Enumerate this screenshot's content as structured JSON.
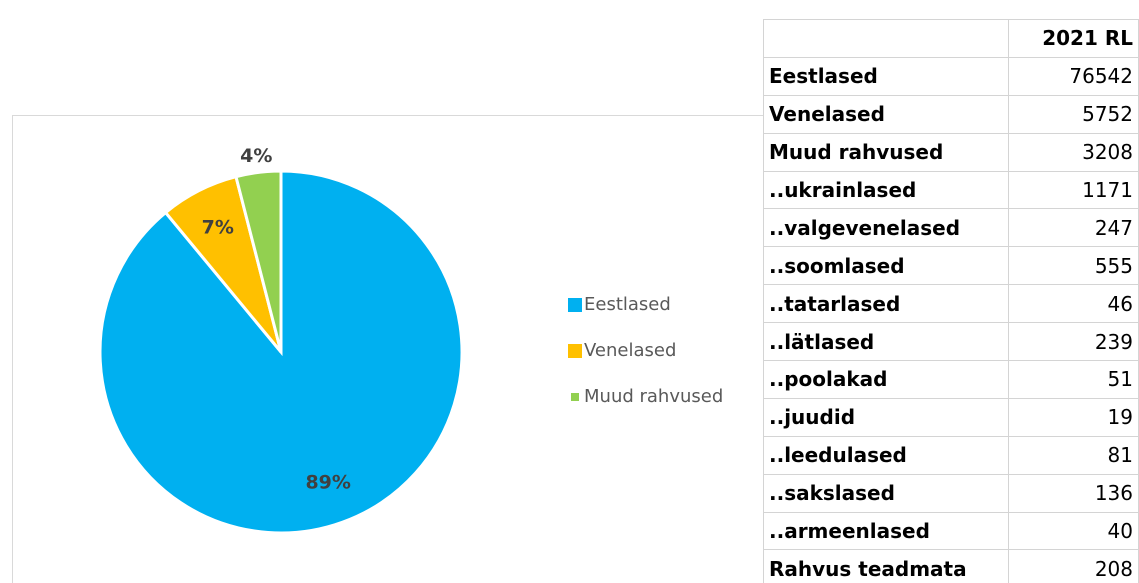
{
  "chart_data": {
    "type": "pie",
    "categories": [
      "Eestlased",
      "Venelased",
      "Muud rahvused"
    ],
    "values": [
      89,
      7,
      4
    ],
    "value_labels": [
      "89%",
      "7%",
      "4%"
    ],
    "colors": [
      "#00b0f0",
      "#ffc000",
      "#92d050"
    ],
    "legend": "right"
  },
  "table": {
    "header": "2021 RL",
    "rows": [
      [
        "Eestlased",
        76542
      ],
      [
        "Venelased",
        5752
      ],
      [
        "Muud rahvused",
        3208
      ],
      [
        "..ukrainlased",
        1171
      ],
      [
        "..valgevenelased",
        247
      ],
      [
        "..soomlased",
        555
      ],
      [
        "..tatarlased",
        46
      ],
      [
        "..lätlased",
        239
      ],
      [
        "..poolakad",
        51
      ],
      [
        "..juudid",
        19
      ],
      [
        "..leedulased",
        81
      ],
      [
        "..sakslased",
        136
      ],
      [
        "..armeenlased",
        40
      ],
      [
        "Rahvus teadmata",
        208
      ]
    ]
  }
}
